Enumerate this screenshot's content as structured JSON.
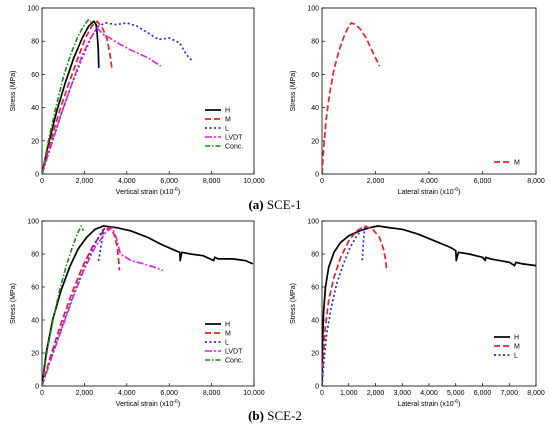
{
  "captions": [
    {
      "tag": "(a)",
      "text": "SCE-1"
    },
    {
      "tag": "(b)",
      "text": "SCE-2"
    }
  ],
  "colors": {
    "H": "#000000",
    "M": "#e8202a",
    "L": "#2a2ad8",
    "LVDT": "#e020e0",
    "Conc.": "#1a8a1a"
  },
  "chart_data": [
    {
      "type": "line",
      "panel": "a-left",
      "xlabel": "Vertical strain (x10",
      "xlabel_sup": "-6",
      "xlabel_end": ")",
      "ylabel": "Stress (MPa)",
      "xlim": [
        0,
        10000
      ],
      "ylim": [
        0,
        100
      ],
      "xticks": [
        0,
        2000,
        4000,
        6000,
        8000,
        10000
      ],
      "xtick_labels": [
        "0",
        "2,000",
        "4,000",
        "6,000",
        "8,000",
        "10,000"
      ],
      "yticks": [
        0,
        20,
        40,
        60,
        80,
        100
      ],
      "ytick_labels": [
        "0",
        "20",
        "40",
        "60",
        "80",
        "100"
      ],
      "legend": "right",
      "series": [
        {
          "name": "H",
          "x": [
            0,
            300,
            700,
            1100,
            1500,
            1900,
            2200,
            2450,
            2550,
            2600,
            2650,
            2680
          ],
          "y": [
            0,
            18,
            38,
            55,
            70,
            82,
            89,
            92,
            90,
            85,
            76,
            64
          ]
        },
        {
          "name": "M",
          "x": [
            0,
            350,
            800,
            1250,
            1700,
            2050,
            2350,
            2600,
            2850,
            3050,
            3200,
            3300
          ],
          "y": [
            0,
            17,
            37,
            54,
            70,
            82,
            89,
            92,
            88,
            82,
            73,
            63
          ]
        },
        {
          "name": "L",
          "x": [
            0,
            400,
            900,
            1400,
            1900,
            2300,
            2650,
            3000,
            3500,
            4000,
            4500,
            5000,
            5500,
            6000,
            6500,
            6800,
            7100
          ],
          "y": [
            0,
            16,
            36,
            54,
            70,
            82,
            89,
            91,
            90,
            91,
            89,
            85,
            81,
            82,
            79,
            72,
            68
          ]
        },
        {
          "name": "LVDT",
          "x": [
            0,
            400,
            900,
            1400,
            1850,
            2250,
            2600,
            2900,
            3200,
            3700,
            4300,
            5000,
            5600
          ],
          "y": [
            0,
            16,
            36,
            54,
            70,
            81,
            88,
            84,
            82,
            78,
            74,
            70,
            65
          ]
        },
        {
          "name": "Conc.",
          "x": [
            0,
            300,
            650,
            1000,
            1350,
            1700,
            2000,
            2200,
            2350
          ],
          "y": [
            0,
            20,
            40,
            58,
            72,
            83,
            90,
            93,
            91
          ]
        }
      ]
    },
    {
      "type": "line",
      "panel": "a-right",
      "xlabel": "Lateral strain (x10",
      "xlabel_sup": "-6",
      "xlabel_end": ")",
      "ylabel": "Stress (MPa)",
      "xlim": [
        0,
        8000
      ],
      "ylim": [
        0,
        100
      ],
      "xticks": [
        0,
        2000,
        4000,
        6000,
        8000
      ],
      "xtick_labels": [
        "0",
        "2,000",
        "4,000",
        "6,000",
        "8,000"
      ],
      "yticks": [
        0,
        20,
        40,
        60,
        80,
        100
      ],
      "ytick_labels": [
        "0",
        "20",
        "40",
        "60",
        "80",
        "100"
      ],
      "legend": "right",
      "series": [
        {
          "name": "M",
          "x": [
            0,
            60,
            150,
            280,
            450,
            650,
            850,
            1000,
            1100,
            1250,
            1450,
            1650,
            1850,
            2000,
            2150
          ],
          "y": [
            0,
            15,
            32,
            48,
            63,
            75,
            84,
            89,
            91,
            90,
            87,
            82,
            75,
            70,
            65
          ]
        }
      ]
    },
    {
      "type": "line",
      "panel": "b-left",
      "xlabel": "Vertical strain (x10",
      "xlabel_sup": "-6",
      "xlabel_end": ")",
      "ylabel": "Stress (MPa)",
      "xlim": [
        0,
        10000
      ],
      "ylim": [
        0,
        100
      ],
      "xticks": [
        0,
        2000,
        4000,
        6000,
        8000,
        10000
      ],
      "xtick_labels": [
        "0",
        "2,000",
        "4,000",
        "6,000",
        "8,000",
        "10,000"
      ],
      "yticks": [
        0,
        20,
        40,
        60,
        80,
        100
      ],
      "ytick_labels": [
        "0",
        "20",
        "40",
        "60",
        "80",
        "100"
      ],
      "legend": "right",
      "series": [
        {
          "name": "H",
          "x": [
            0,
            200,
            500,
            900,
            1300,
            1700,
            2100,
            2500,
            2900,
            3500,
            4200,
            5000,
            5600,
            6300,
            6500,
            6520,
            6600,
            7000,
            7600,
            8100,
            8150,
            8300,
            9000,
            9600,
            9950
          ],
          "y": [
            0,
            20,
            40,
            58,
            72,
            83,
            90,
            95,
            97,
            96,
            94,
            90,
            86,
            82,
            81,
            76,
            81,
            80,
            79,
            76,
            78,
            77,
            77,
            76,
            74
          ]
        },
        {
          "name": "M",
          "x": [
            0,
            400,
            900,
            1400,
            1900,
            2400,
            2900,
            3200,
            3400,
            3550,
            3620,
            3650
          ],
          "y": [
            0,
            18,
            38,
            56,
            72,
            85,
            94,
            96,
            92,
            84,
            76,
            70
          ]
        },
        {
          "name": "L",
          "x": [
            0,
            450,
            1000,
            1500,
            2000,
            2400,
            2750,
            2950,
            2850,
            2750,
            2650
          ],
          "y": [
            0,
            18,
            38,
            56,
            72,
            84,
            92,
            96,
            90,
            82,
            75
          ]
        },
        {
          "name": "LVDT",
          "x": [
            0,
            450,
            1000,
            1500,
            2000,
            2500,
            3000,
            3300,
            3500,
            3700,
            4200,
            4800,
            5300,
            5700
          ],
          "y": [
            0,
            17,
            37,
            55,
            71,
            84,
            93,
            96,
            90,
            80,
            76,
            74,
            72,
            70
          ]
        },
        {
          "name": "Conc.",
          "x": [
            0,
            250,
            550,
            850,
            1150,
            1450,
            1700,
            1850,
            1950
          ],
          "y": [
            0,
            22,
            42,
            59,
            73,
            85,
            93,
            97,
            94
          ]
        }
      ]
    },
    {
      "type": "line",
      "panel": "b-right",
      "xlabel": "Lateral strain (x10",
      "xlabel_sup": "-6",
      "xlabel_end": ")",
      "ylabel": "Stress (MPa)",
      "xlim": [
        0,
        8000
      ],
      "ylim": [
        0,
        100
      ],
      "xticks": [
        0,
        1000,
        2000,
        3000,
        4000,
        5000,
        6000,
        7000,
        8000
      ],
      "xtick_labels": [
        "0",
        "1,000",
        "2,000",
        "3,000",
        "4,000",
        "5,000",
        "6,000",
        "7,000",
        "8,000"
      ],
      "yticks": [
        0,
        20,
        40,
        60,
        80,
        100
      ],
      "ytick_labels": [
        "0",
        "20",
        "40",
        "60",
        "80",
        "100"
      ],
      "legend": "right",
      "series": [
        {
          "name": "H",
          "x": [
            0,
            20,
            60,
            130,
            250,
            450,
            700,
            1000,
            1400,
            1800,
            2100,
            2500,
            3000,
            3600,
            4200,
            4800,
            5000,
            5020,
            5100,
            5500,
            6000,
            6100,
            6120,
            6300,
            7000,
            7200,
            7250,
            7500,
            8000
          ],
          "y": [
            0,
            25,
            45,
            60,
            72,
            81,
            87,
            91,
            94,
            96,
            97,
            96,
            95,
            92,
            88,
            84,
            82,
            76,
            81,
            80,
            78,
            76,
            78,
            77,
            75,
            73,
            75,
            74,
            73
          ]
        },
        {
          "name": "M",
          "x": [
            0,
            50,
            120,
            250,
            450,
            700,
            1000,
            1300,
            1600,
            1900,
            2150,
            2300,
            2380,
            2420
          ],
          "y": [
            0,
            18,
            35,
            52,
            66,
            78,
            88,
            94,
            97,
            95,
            90,
            83,
            76,
            70
          ]
        },
        {
          "name": "L",
          "x": [
            0,
            70,
            180,
            350,
            550,
            800,
            1050,
            1300,
            1500,
            1600,
            1550,
            1500
          ],
          "y": [
            0,
            15,
            32,
            48,
            62,
            74,
            84,
            91,
            95,
            96,
            88,
            75
          ]
        }
      ]
    }
  ]
}
